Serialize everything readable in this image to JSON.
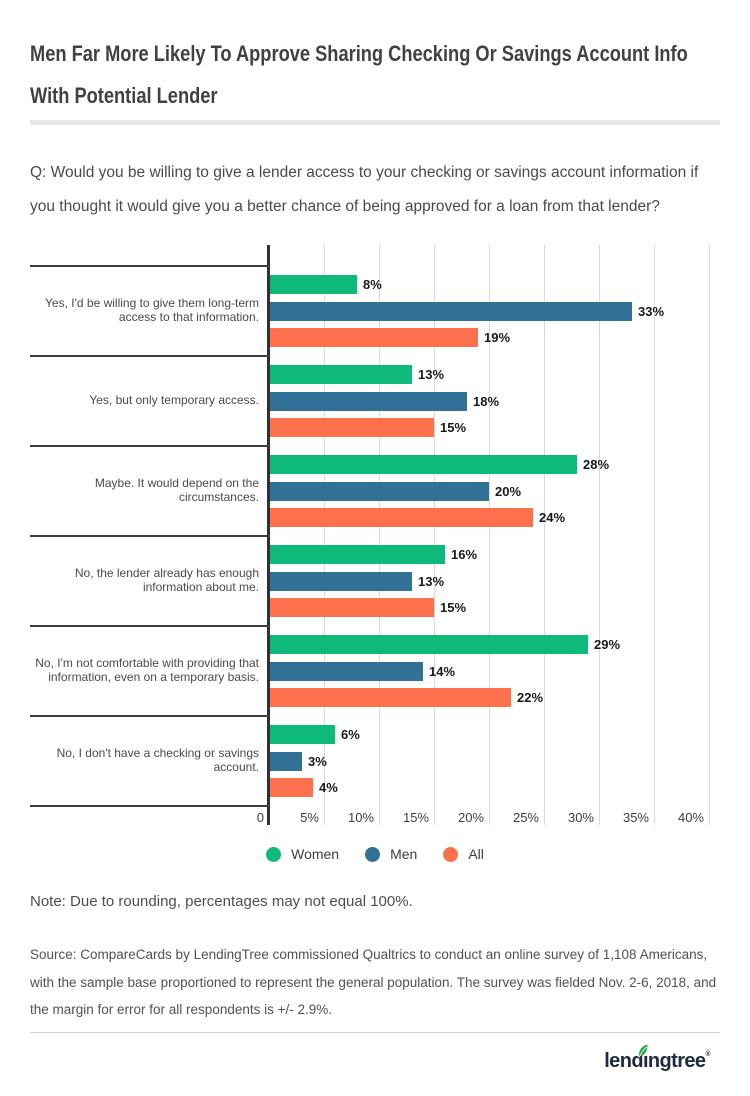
{
  "header": {
    "title": "Men Far More Likely To Approve Sharing Checking Or Savings Account Info With Potential Lender",
    "question": "Q: Would you be willing to give a lender access to your checking or savings account information if you thought it would give you a better chance of being approved for a loan from that lender?"
  },
  "chart_data": {
    "type": "bar",
    "orientation": "horizontal",
    "categories": [
      "Yes, I'd be willing to give them long-term access to that information.",
      "Yes, but only temporary access.",
      "Maybe. It would depend on the circumstances.",
      "No, the lender already has enough information about me.",
      "No, I'm not comfortable with providing that information, even on a temporary basis.",
      "No, I don't have a checking or savings account."
    ],
    "series": [
      {
        "name": "Women",
        "color": "#0fb97a",
        "values": [
          8,
          13,
          28,
          16,
          29,
          6
        ]
      },
      {
        "name": "Men",
        "color": "#327196",
        "values": [
          33,
          18,
          20,
          13,
          14,
          3
        ]
      },
      {
        "name": "All",
        "color": "#ff714d",
        "values": [
          19,
          15,
          24,
          15,
          22,
          4
        ]
      }
    ],
    "value_suffix": "%",
    "xlim": [
      0,
      40
    ],
    "x_ticks": [
      "0",
      "5%",
      "10%",
      "15%",
      "20%",
      "25%",
      "30%",
      "35%",
      "40%"
    ],
    "grid": true,
    "legend_position": "bottom"
  },
  "footer": {
    "note": "Note: Due to rounding, percentages may not equal 100%.",
    "source": "Source: CompareCards by LendingTree commissioned Qualtrics to conduct an online survey of 1,108 Americans, with the sample base proportioned to represent the general population. The survey was fielded Nov. 2-6, 2018, and the margin for error for all respondents is +/- 2.9%."
  },
  "logo": {
    "pre": "lend",
    "dotless_i": "ı",
    "post": "ngtree",
    "mark": "®",
    "leaf_color": "#2aa84a",
    "text_color": "#1e2a44"
  }
}
